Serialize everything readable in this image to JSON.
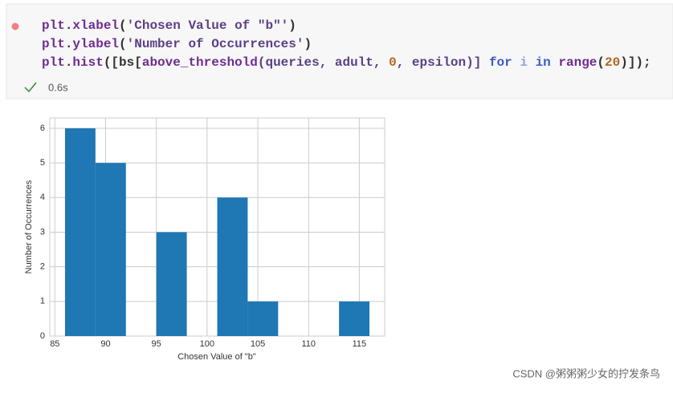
{
  "cell": {
    "code": [
      [
        {
          "text": "plt",
          "color": "#6f2c91"
        },
        {
          "text": ".",
          "color": "#333333"
        },
        {
          "text": "xlabel",
          "color": "#6f2c91"
        },
        {
          "text": "(",
          "color": "#333333"
        },
        {
          "text": "'Chosen Value of \"b\"'",
          "color": "#5b3f86"
        },
        {
          "text": ")",
          "color": "#333333"
        }
      ],
      [
        {
          "text": "plt",
          "color": "#6f2c91"
        },
        {
          "text": ".",
          "color": "#333333"
        },
        {
          "text": "ylabel",
          "color": "#6f2c91"
        },
        {
          "text": "(",
          "color": "#333333"
        },
        {
          "text": "'Number of Occurrences'",
          "color": "#5b3f86"
        },
        {
          "text": ")",
          "color": "#333333"
        }
      ],
      [
        {
          "text": "plt",
          "color": "#6f2c91"
        },
        {
          "text": ".",
          "color": "#333333"
        },
        {
          "text": "hist",
          "color": "#6f2c91"
        },
        {
          "text": "([bs[",
          "color": "#333333"
        },
        {
          "text": "above_threshold",
          "color": "#6f2c91"
        },
        {
          "text": "(queries, adult, ",
          "color": "#5b3f86"
        },
        {
          "text": "0",
          "color": "#b5651d"
        },
        {
          "text": ", epsilon)] ",
          "color": "#5b3f86"
        },
        {
          "text": "for",
          "color": "#3c5cc4"
        },
        {
          "text": " ",
          "color": "#333333"
        },
        {
          "text": "i",
          "color": "#8fa3e0"
        },
        {
          "text": " ",
          "color": "#333333"
        },
        {
          "text": "in",
          "color": "#3c5cc4"
        },
        {
          "text": " ",
          "color": "#333333"
        },
        {
          "text": "range",
          "color": "#6f2c91"
        },
        {
          "text": "(",
          "color": "#333333"
        },
        {
          "text": "20",
          "color": "#b5651d"
        },
        {
          "text": ")]);",
          "color": "#333333"
        }
      ]
    ],
    "duration": "0.6s"
  },
  "chart_data": {
    "type": "histogram",
    "xlabel": "Chosen Value of \"b\"",
    "ylabel": "Number of Occurrences",
    "bins": [
      86,
      89,
      92,
      95,
      98,
      101,
      104,
      107,
      110,
      113,
      116
    ],
    "values": [
      6,
      5,
      0,
      3,
      0,
      4,
      1,
      0,
      0,
      1
    ],
    "color": "#1f77b4",
    "xlim": [
      84.5,
      117.5
    ],
    "xticks": [
      85,
      90,
      95,
      100,
      105,
      110,
      115
    ],
    "ylim": [
      0,
      6.3
    ],
    "yticks": [
      0,
      1,
      2,
      3,
      4,
      5,
      6
    ],
    "grid": true
  },
  "watermark": "CSDN @粥粥粥少女的拧发条鸟"
}
